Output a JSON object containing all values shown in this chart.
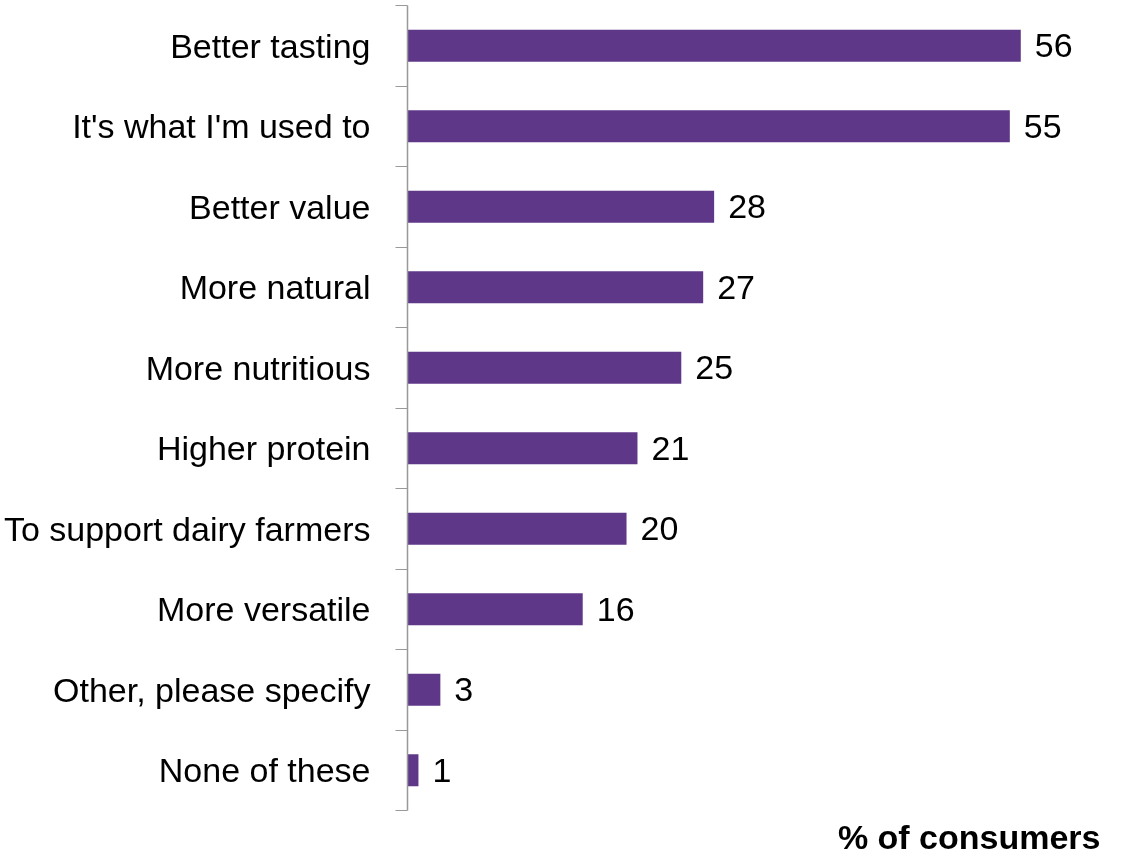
{
  "chart_data": {
    "type": "bar",
    "orientation": "horizontal",
    "categories": [
      "Better tasting",
      "It's what I'm used to",
      "Better value",
      "More natural",
      "More nutritious",
      "Higher protein",
      "To support dairy farmers",
      "More versatile",
      "Other, please specify",
      "None of these"
    ],
    "values": [
      56,
      55,
      28,
      27,
      25,
      21,
      20,
      16,
      3,
      1
    ],
    "color": "#5e3789",
    "xlabel": "% of consumers",
    "data_labels": true
  }
}
